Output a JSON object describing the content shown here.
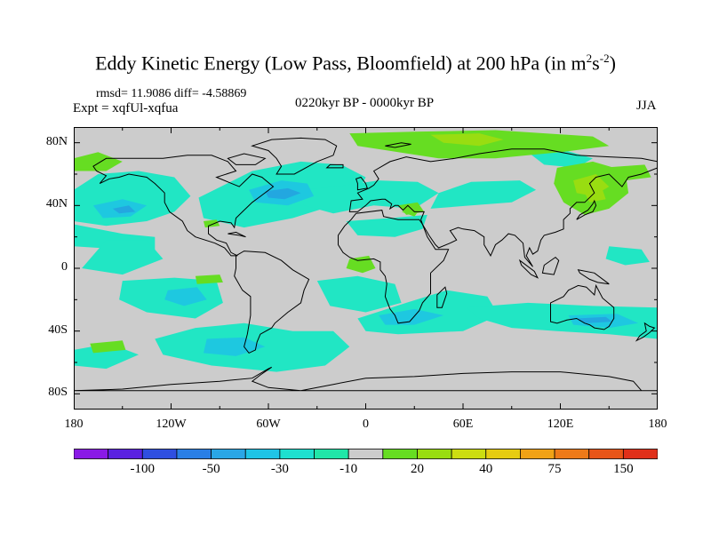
{
  "title": {
    "main": "Eddy Kinetic Energy (Low Pass, Bloomfield) at 200 hPa (in m",
    "sup1": "2",
    "mid": "s",
    "sup2": "-2",
    "end": ")"
  },
  "stats": "rmsd= 11.9086 diff= -4.58869",
  "expt": "Expt = xqfUl-xqfua",
  "period": "0220kyr BP - 0000kyr BP",
  "season": "JJA",
  "y_ticks": [
    {
      "lat": 80,
      "label": "80N"
    },
    {
      "lat": 40,
      "label": "40N"
    },
    {
      "lat": 0,
      "label": "0"
    },
    {
      "lat": -40,
      "label": "40S"
    },
    {
      "lat": -80,
      "label": "80S"
    }
  ],
  "x_ticks": [
    {
      "lon": -180,
      "label": "180"
    },
    {
      "lon": -120,
      "label": "120W"
    },
    {
      "lon": -60,
      "label": "60W"
    },
    {
      "lon": 0,
      "label": "0"
    },
    {
      "lon": 60,
      "label": "60E"
    },
    {
      "lon": 120,
      "label": "120E"
    },
    {
      "lon": 180,
      "label": "180"
    }
  ],
  "colorbar": {
    "colors": [
      "#8a1ae6",
      "#5a22e0",
      "#2f4fe0",
      "#2a7fe6",
      "#2aa6e6",
      "#1fc4e6",
      "#1ee0cf",
      "#21e6a8",
      "#cccccc",
      "#66dd22",
      "#99dd11",
      "#ccdd11",
      "#e6cc11",
      "#f0a216",
      "#ee7a18",
      "#e85518",
      "#e0301a"
    ],
    "labels": [
      {
        "value": "-100",
        "index": 2
      },
      {
        "value": "-50",
        "index": 4
      },
      {
        "value": "-30",
        "index": 6
      },
      {
        "value": "-10",
        "index": 8
      },
      {
        "value": "20",
        "index": 10
      },
      {
        "value": "40",
        "index": 12
      },
      {
        "value": "75",
        "index": 14
      },
      {
        "value": "150",
        "index": 16
      }
    ]
  },
  "colors": {
    "background": "#cccccc",
    "neg_light": "#21e6c4",
    "neg_mid": "#1ec8e0",
    "neg_strong": "#23a7e0",
    "pos_light": "#66dd22",
    "pos_mid": "#99dd11",
    "coast": "#000000"
  }
}
